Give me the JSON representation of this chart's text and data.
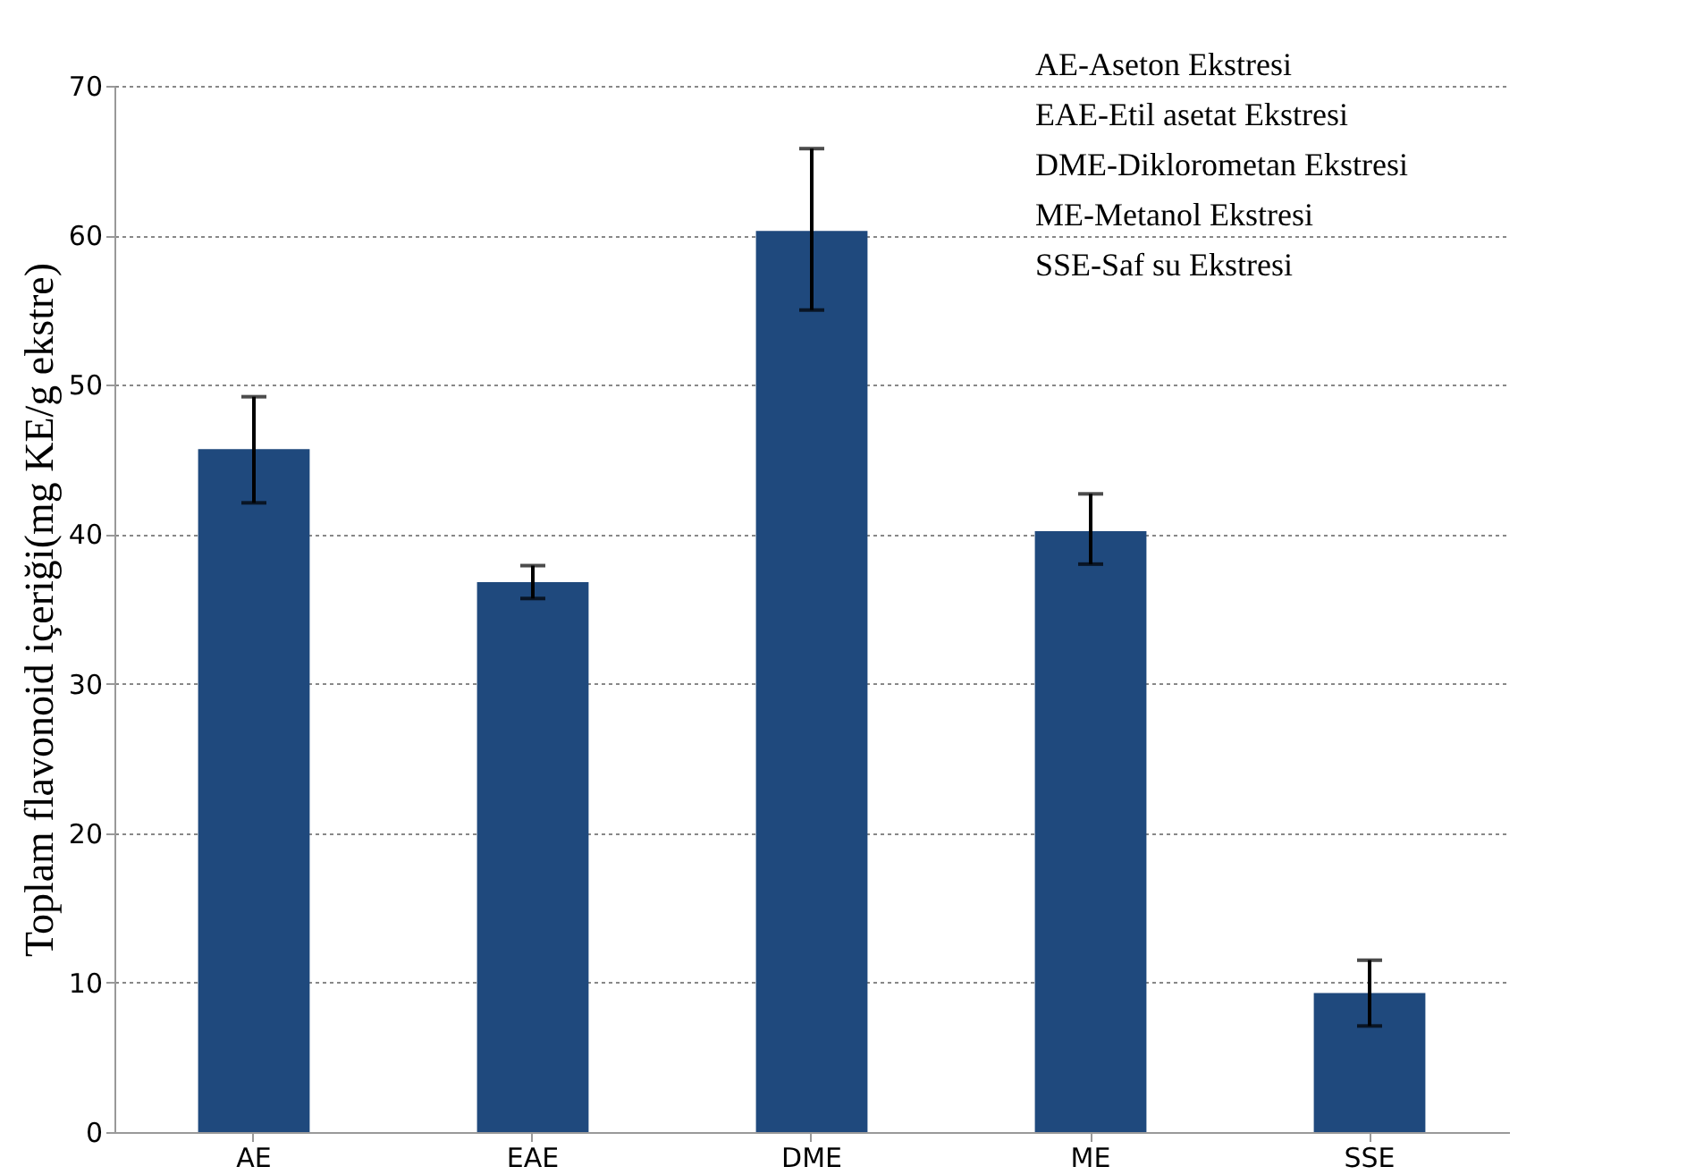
{
  "chart_data": {
    "type": "bar",
    "ylabel": "Toplam flavonoid içeriği(mg KE/g ekstre)",
    "categories": [
      "AE",
      "EAE",
      "DME",
      "ME",
      "SSE"
    ],
    "values": [
      45.7,
      36.8,
      60.3,
      40.2,
      9.3
    ],
    "errors": [
      [
        42.1,
        49.2
      ],
      [
        35.7,
        37.9
      ],
      [
        55.0,
        65.8
      ],
      [
        38.0,
        42.7
      ],
      [
        7.1,
        11.5
      ]
    ],
    "color": "#1f497d",
    "ylim": [
      0,
      70
    ],
    "yticks": [
      0,
      10,
      20,
      30,
      40,
      50,
      60,
      70
    ],
    "grid": "y",
    "annotations": [
      "AE-Aseton Ekstresi",
      "EAE-Etil asetat Ekstresi",
      "DME-Diklorometan Ekstresi",
      "ME-Metanol Ekstresi",
      "SSE-Saf su Ekstresi"
    ]
  }
}
